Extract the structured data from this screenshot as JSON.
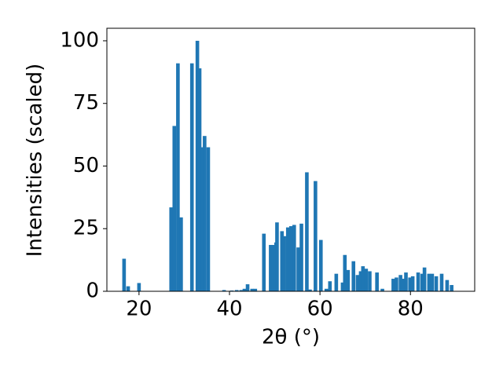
{
  "chart_data": {
    "type": "bar",
    "xlabel": "2θ (°)",
    "ylabel": "Intensities (scaled)",
    "color": "#1f77b4",
    "x": [
      16.7,
      17.6,
      20.0,
      27.1,
      27.8,
      28.6,
      29.3,
      31.7,
      32.9,
      33.4,
      34.0,
      34.5,
      35.3,
      38.8,
      40.5,
      41.6,
      42.6,
      43.3,
      44.0,
      45.0,
      45.7,
      47.6,
      49.1,
      49.7,
      50.3,
      50.5,
      51.6,
      52.1,
      52.9,
      53.6,
      54.3,
      55.2,
      55.9,
      57.1,
      57.8,
      59.0,
      60.2,
      61.4,
      62.2,
      63.6,
      65.0,
      65.5,
      66.2,
      67.4,
      68.3,
      69.0,
      69.5,
      70.2,
      71.0,
      72.6,
      73.8,
      76.2,
      76.9,
      77.8,
      78.3,
      79.0,
      79.9,
      80.5,
      81.7,
      82.6,
      83.1,
      84.1,
      84.8,
      85.7,
      86.9,
      88.1,
      89.1
    ],
    "values": [
      13,
      2,
      3.3,
      33.5,
      66,
      91,
      29.5,
      91,
      100,
      89,
      57.5,
      62,
      57.5,
      0.5,
      0.3,
      0.5,
      0.5,
      1,
      2.8,
      1,
      1,
      23,
      18.5,
      18.5,
      19.5,
      27.5,
      24,
      22,
      25.5,
      26,
      26.5,
      17.5,
      27,
      47.5,
      0.7,
      44,
      20.5,
      1,
      4,
      7,
      3.5,
      14.5,
      8.5,
      12,
      6.5,
      8,
      10,
      9,
      8,
      7.5,
      1,
      5,
      5.5,
      6.5,
      5,
      7.5,
      5.5,
      6,
      7.5,
      7,
      9.5,
      7,
      7,
      6,
      7,
      4.5,
      2.5
    ],
    "xlim": [
      12.9,
      94.2
    ],
    "ylim": [
      0,
      105
    ],
    "xticks": [
      20,
      40,
      60,
      80
    ],
    "yticks": [
      0,
      25,
      50,
      75,
      100
    ]
  }
}
